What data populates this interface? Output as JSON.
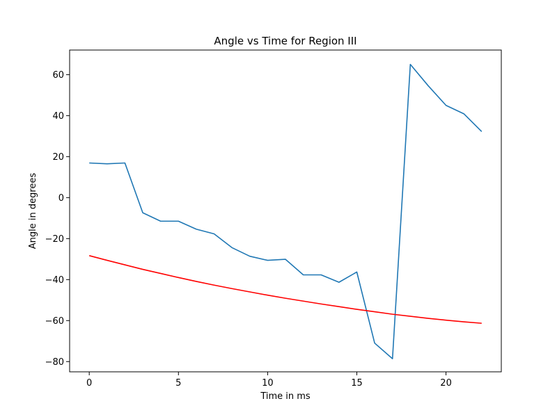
{
  "chart_data": {
    "type": "line",
    "title": "Angle vs Time for Region III",
    "xlabel": "Time in ms",
    "ylabel": "Angle in degrees",
    "xlim": [
      -1.1,
      23.1
    ],
    "ylim": [
      -85,
      72
    ],
    "xticks": [
      0,
      5,
      10,
      15,
      20
    ],
    "yticks": [
      -80,
      -60,
      -40,
      -20,
      0,
      20,
      40,
      60
    ],
    "grid": false,
    "series": [
      {
        "color": "#1f77b4",
        "x": [
          0,
          1,
          2,
          3,
          4,
          5,
          6,
          7,
          8,
          9,
          10,
          11,
          12,
          13,
          14,
          15,
          16,
          17,
          18,
          19,
          20,
          21,
          22
        ],
        "y": [
          16.9,
          16.5,
          16.9,
          -7.4,
          -11.5,
          -11.5,
          -15.4,
          -17.7,
          -24.4,
          -28.6,
          -30.6,
          -30.1,
          -37.7,
          -37.7,
          -41.3,
          -36.3,
          -71.0,
          -78.6,
          65.0,
          54.6,
          45.0,
          40.9,
          32.2
        ]
      },
      {
        "color": "#ff0000",
        "x": [
          0,
          1,
          2,
          3,
          4,
          5,
          6,
          7,
          8,
          9,
          10,
          11,
          12,
          13,
          14,
          15,
          16,
          17,
          18,
          19,
          20,
          21,
          22
        ],
        "y": [
          -28.3,
          -30.6,
          -32.8,
          -35.0,
          -37.0,
          -39.0,
          -40.9,
          -42.7,
          -44.4,
          -46.0,
          -47.6,
          -49.1,
          -50.5,
          -51.9,
          -53.2,
          -54.5,
          -55.7,
          -56.9,
          -57.9,
          -58.9,
          -59.8,
          -60.6,
          -61.3
        ]
      }
    ]
  }
}
